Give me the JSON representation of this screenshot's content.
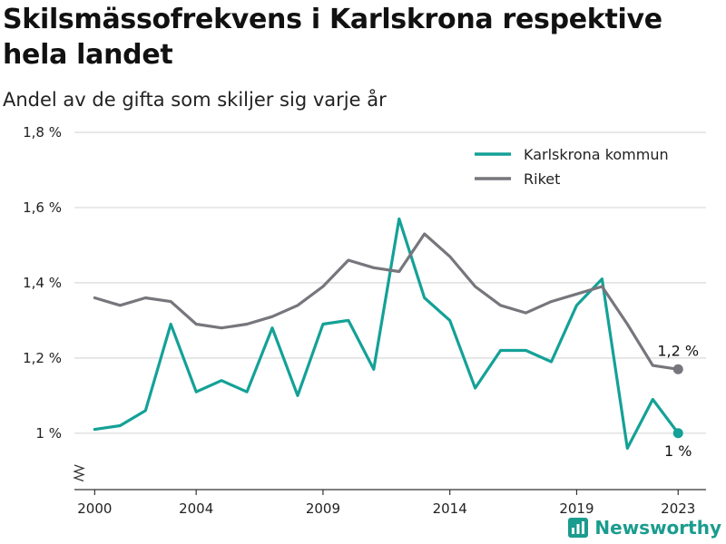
{
  "title": "Skilsmässofrekvens i Karlskrona respektive hela landet",
  "subtitle": "Andel av de gifta som skiljer sig varje år",
  "brand": "Newsworthy",
  "chart_data": {
    "type": "line",
    "x": [
      2000,
      2001,
      2002,
      2003,
      2004,
      2005,
      2006,
      2007,
      2008,
      2009,
      2010,
      2011,
      2012,
      2013,
      2014,
      2015,
      2016,
      2017,
      2018,
      2019,
      2020,
      2021,
      2022,
      2023
    ],
    "series": [
      {
        "name": "Karlskrona kommun",
        "color": "#14a197",
        "values": [
          1.01,
          1.02,
          1.06,
          1.29,
          1.11,
          1.14,
          1.11,
          1.28,
          1.1,
          1.29,
          1.3,
          1.17,
          1.57,
          1.36,
          1.3,
          1.12,
          1.22,
          1.22,
          1.19,
          1.34,
          1.41,
          0.96,
          1.09,
          1.0
        ],
        "end_label": "1 %"
      },
      {
        "name": "Riket",
        "color": "#77767c",
        "values": [
          1.36,
          1.34,
          1.36,
          1.35,
          1.29,
          1.28,
          1.29,
          1.31,
          1.34,
          1.39,
          1.46,
          1.44,
          1.43,
          1.53,
          1.47,
          1.39,
          1.34,
          1.32,
          1.35,
          1.37,
          1.39,
          1.29,
          1.18,
          1.17
        ],
        "end_label": "1,2 %"
      }
    ],
    "x_ticks": [
      2000,
      2004,
      2009,
      2014,
      2019,
      2023
    ],
    "y_ticks": [
      {
        "value": 1.0,
        "label": "1 %"
      },
      {
        "value": 1.2,
        "label": "1,2 %"
      },
      {
        "value": 1.4,
        "label": "1,4 %"
      },
      {
        "value": 1.6,
        "label": "1,6 %"
      },
      {
        "value": 1.8,
        "label": "1,8 %"
      }
    ],
    "xlim": [
      1999.2,
      2024.1
    ],
    "ylim": [
      0.85,
      1.8
    ],
    "grid": true,
    "legend_position": "top-right",
    "axis_break": true
  }
}
